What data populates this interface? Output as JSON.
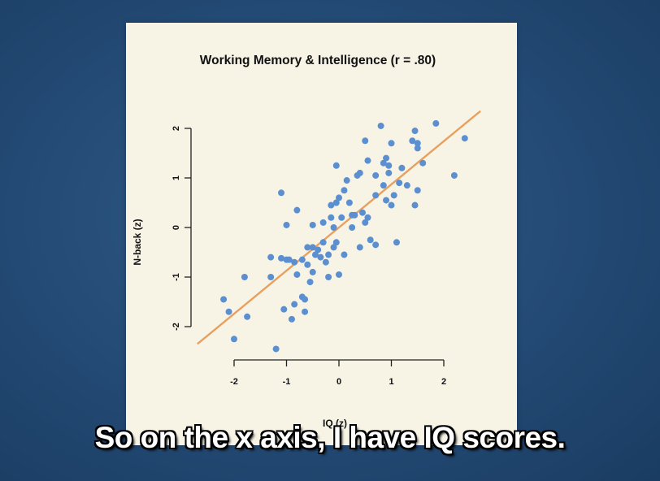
{
  "subtitle": "So on the x axis, I have IQ scores.",
  "colors": {
    "points": "#5b8fd0",
    "fit_line": "#e8a060",
    "panel": "#f7f4e6"
  },
  "chart_data": {
    "type": "scatter",
    "title": "Working Memory & Intelligence (r = .80)",
    "xlabel": "IQ (z)",
    "ylabel": "N-back (z)",
    "xlim": [
      -2.4,
      2.6
    ],
    "ylim": [
      -2.6,
      2.3
    ],
    "xticks": [
      -2,
      -1,
      0,
      1,
      2
    ],
    "yticks": [
      -2,
      -1,
      0,
      1,
      2
    ],
    "grid": false,
    "fit_line": [
      [
        -2.7,
        -2.35
      ],
      [
        2.7,
        2.35
      ]
    ],
    "points": [
      [
        -2.2,
        -1.45
      ],
      [
        -2.1,
        -1.7
      ],
      [
        -2.0,
        -2.25
      ],
      [
        -1.8,
        -1.0
      ],
      [
        -1.75,
        -1.8
      ],
      [
        -1.3,
        -0.6
      ],
      [
        -1.3,
        -1.0
      ],
      [
        -1.2,
        -2.45
      ],
      [
        -1.1,
        0.7
      ],
      [
        -1.1,
        -0.62
      ],
      [
        -1.05,
        -1.65
      ],
      [
        -1.0,
        -0.65
      ],
      [
        -1.0,
        0.05
      ],
      [
        -0.95,
        -0.65
      ],
      [
        -0.9,
        -1.85
      ],
      [
        -0.85,
        -0.7
      ],
      [
        -0.85,
        -1.55
      ],
      [
        -0.8,
        0.35
      ],
      [
        -0.8,
        -0.95
      ],
      [
        -0.7,
        -0.65
      ],
      [
        -0.7,
        -1.4
      ],
      [
        -0.65,
        -1.7
      ],
      [
        -0.65,
        -1.45
      ],
      [
        -0.6,
        -0.4
      ],
      [
        -0.6,
        -0.75
      ],
      [
        -0.55,
        -1.1
      ],
      [
        -0.5,
        0.05
      ],
      [
        -0.5,
        -0.4
      ],
      [
        -0.5,
        -0.9
      ],
      [
        -0.45,
        -0.55
      ],
      [
        -0.4,
        -0.45
      ],
      [
        -0.35,
        -0.6
      ],
      [
        -0.3,
        -0.3
      ],
      [
        -0.3,
        0.1
      ],
      [
        -0.25,
        -0.7
      ],
      [
        -0.2,
        -0.55
      ],
      [
        -0.2,
        -1.0
      ],
      [
        -0.15,
        0.2
      ],
      [
        -0.15,
        0.45
      ],
      [
        -0.1,
        -0.4
      ],
      [
        -0.1,
        0.0
      ],
      [
        -0.05,
        0.5
      ],
      [
        -0.05,
        1.25
      ],
      [
        -0.05,
        -0.3
      ],
      [
        0.0,
        0.6
      ],
      [
        0.0,
        -0.95
      ],
      [
        0.05,
        0.2
      ],
      [
        0.1,
        0.75
      ],
      [
        0.1,
        -0.55
      ],
      [
        0.15,
        0.95
      ],
      [
        0.2,
        0.5
      ],
      [
        0.25,
        0.25
      ],
      [
        0.25,
        0.0
      ],
      [
        0.3,
        0.25
      ],
      [
        0.35,
        1.05
      ],
      [
        0.4,
        1.1
      ],
      [
        0.4,
        -0.4
      ],
      [
        0.45,
        0.3
      ],
      [
        0.5,
        1.75
      ],
      [
        0.5,
        0.1
      ],
      [
        0.55,
        1.35
      ],
      [
        0.55,
        0.2
      ],
      [
        0.6,
        -0.25
      ],
      [
        0.7,
        1.05
      ],
      [
        0.7,
        0.65
      ],
      [
        0.7,
        -0.35
      ],
      [
        0.8,
        2.05
      ],
      [
        0.85,
        1.3
      ],
      [
        0.85,
        0.85
      ],
      [
        0.9,
        1.4
      ],
      [
        0.9,
        0.55
      ],
      [
        0.95,
        1.25
      ],
      [
        0.95,
        1.1
      ],
      [
        1.0,
        1.7
      ],
      [
        1.0,
        0.45
      ],
      [
        1.05,
        0.65
      ],
      [
        1.1,
        -0.3
      ],
      [
        1.15,
        0.9
      ],
      [
        1.2,
        1.2
      ],
      [
        1.3,
        0.85
      ],
      [
        1.4,
        1.75
      ],
      [
        1.45,
        0.45
      ],
      [
        1.45,
        1.95
      ],
      [
        1.5,
        1.6
      ],
      [
        1.5,
        1.7
      ],
      [
        1.5,
        0.75
      ],
      [
        1.6,
        1.3
      ],
      [
        1.85,
        2.1
      ],
      [
        2.2,
        1.05
      ],
      [
        2.4,
        1.8
      ]
    ]
  }
}
